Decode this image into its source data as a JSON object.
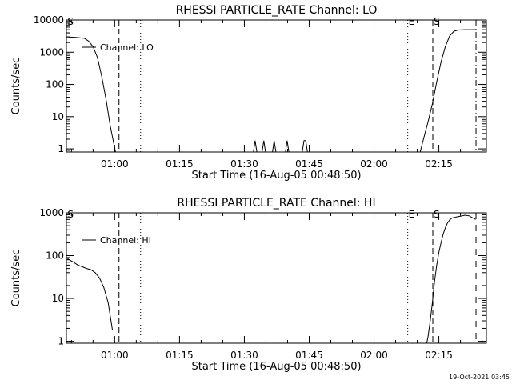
{
  "footer": {
    "timestamp": "19-Oct-2021 03:45"
  },
  "chart_data": [
    {
      "type": "line",
      "title": "RHESSI PARTICLE_RATE Channel: LO",
      "xlabel": "Start Time (16-Aug-05 00:48:50)",
      "ylabel": "Counts/sec",
      "y_scale": "log",
      "ylim": [
        0.8,
        10000
      ],
      "x_units": "minutes after 00:00 UT, 16-Aug-05",
      "xlim": [
        48.83,
        146
      ],
      "x_ticks": [
        {
          "value": 60,
          "label": "01:00"
        },
        {
          "value": 75,
          "label": "01:15"
        },
        {
          "value": 90,
          "label": "01:30"
        },
        {
          "value": 105,
          "label": "01:45"
        },
        {
          "value": 120,
          "label": "02:00"
        },
        {
          "value": 135,
          "label": "02:15"
        }
      ],
      "y_ticks": [
        {
          "value": 1,
          "label": "1"
        },
        {
          "value": 10,
          "label": "10"
        },
        {
          "value": 100,
          "label": "100"
        },
        {
          "value": 1000,
          "label": "1000"
        },
        {
          "value": 10000,
          "label": "10000"
        }
      ],
      "legend": {
        "label": "Channel: LO",
        "placement": "top-left"
      },
      "markers": [
        {
          "x": 48.9,
          "label": "S",
          "style": "none"
        },
        {
          "x": 61.0,
          "label": "",
          "style": "dashed"
        },
        {
          "x": 66.0,
          "label": "",
          "style": "dotted"
        },
        {
          "x": 127.8,
          "label": "E",
          "style": "dotted"
        },
        {
          "x": 133.6,
          "label": "S",
          "style": "dashed"
        },
        {
          "x": 143.6,
          "label": "",
          "style": "dashdot"
        }
      ],
      "series": [
        {
          "segments": [
            {
              "x": [
                48.83,
                51,
                53,
                54,
                55,
                56,
                57,
                58,
                59,
                60.2
              ],
              "y": [
                3000,
                2900,
                2700,
                2200,
                1500,
                700,
                180,
                35,
                5,
                0.8
              ]
            },
            {
              "x": [
                60.2,
                92.1,
                92.5,
                92.9,
                94.1,
                94.5,
                94.9,
                96.5,
                96.9,
                97.3,
                99.5,
                99.9,
                100.3,
                103.4,
                103.8,
                104.2,
                104.6,
                104.9
              ],
              "y": [
                0.8,
                0.8,
                1.8,
                0.8,
                0.8,
                1.8,
                0.8,
                0.8,
                1.8,
                0.8,
                0.8,
                1.8,
                0.8,
                0.8,
                1.8,
                1.8,
                0.8,
                0.8
              ]
            },
            {
              "x": [
                104.9,
                130.7,
                131.2,
                132.5,
                133.5,
                134.5,
                135.5,
                136.5,
                137.5,
                138.5,
                139.5,
                141,
                143.5
              ],
              "y": [
                0.8,
                0.8,
                1.5,
                7,
                25,
                120,
                500,
                1500,
                3200,
                4500,
                4900,
                5000,
                5000
              ]
            }
          ]
        }
      ]
    },
    {
      "type": "line",
      "title": "RHESSI PARTICLE_RATE Channel: HI",
      "xlabel": "Start Time (16-Aug-05 00:48:50)",
      "ylabel": "Counts/sec",
      "y_scale": "log",
      "ylim": [
        0.9,
        1000
      ],
      "x_units": "minutes after 00:00 UT, 16-Aug-05",
      "xlim": [
        48.83,
        146
      ],
      "x_ticks": [
        {
          "value": 60,
          "label": "01:00"
        },
        {
          "value": 75,
          "label": "01:15"
        },
        {
          "value": 90,
          "label": "01:30"
        },
        {
          "value": 105,
          "label": "01:45"
        },
        {
          "value": 120,
          "label": "02:00"
        },
        {
          "value": 135,
          "label": "02:15"
        }
      ],
      "y_ticks": [
        {
          "value": 1,
          "label": "1"
        },
        {
          "value": 10,
          "label": "10"
        },
        {
          "value": 100,
          "label": "100"
        },
        {
          "value": 1000,
          "label": "1000"
        }
      ],
      "legend": {
        "label": "Channel: HI",
        "placement": "top-left"
      },
      "markers": [
        {
          "x": 48.9,
          "label": "S",
          "style": "none"
        },
        {
          "x": 61.0,
          "label": "",
          "style": "dashed"
        },
        {
          "x": 66.0,
          "label": "",
          "style": "dotted"
        },
        {
          "x": 127.8,
          "label": "E",
          "style": "dotted"
        },
        {
          "x": 133.6,
          "label": "S",
          "style": "dashed"
        },
        {
          "x": 143.6,
          "label": "",
          "style": "dashdot"
        }
      ],
      "series": [
        {
          "segments": [
            {
              "x": [
                48.83,
                49.5,
                50.5,
                51.5,
                52.5,
                53.5,
                54.5,
                55.5,
                56.5,
                57.5,
                58.5,
                59.5
              ],
              "y": [
                90,
                80,
                70,
                60,
                55,
                50,
                47,
                40,
                30,
                18,
                8,
                1.8
              ]
            },
            {
              "x": [
                132.2,
                132.5,
                133,
                133.5,
                134,
                134.5,
                135,
                135.5,
                136,
                136.5,
                137,
                137.5,
                138,
                139,
                140,
                141,
                142,
                143.5
              ],
              "y": [
                0.9,
                1.3,
                3,
                8,
                25,
                60,
                120,
                200,
                320,
                450,
                580,
                680,
                750,
                800,
                830,
                880,
                850,
                700
              ]
            }
          ]
        }
      ]
    }
  ]
}
